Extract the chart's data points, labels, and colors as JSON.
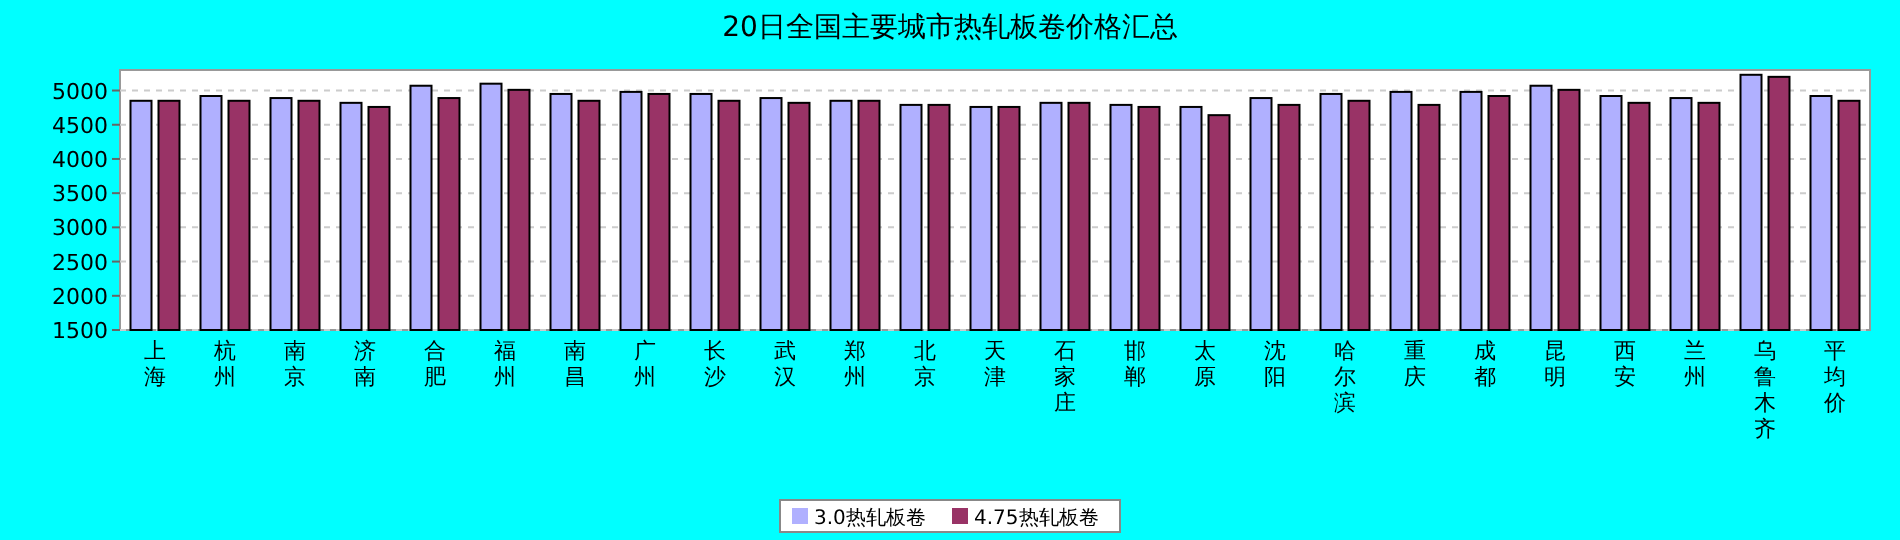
{
  "chart_data": {
    "type": "bar",
    "title": "20日全国主要城市热轧板卷价格汇总",
    "categories": [
      "上海",
      "杭州",
      "南京",
      "济南",
      "合肥",
      "福州",
      "南昌",
      "广州",
      "长沙",
      "武汉",
      "郑州",
      "北京",
      "天津",
      "石家庄",
      "邯郸",
      "太原",
      "沈阳",
      "哈尔滨",
      "重庆",
      "成都",
      "昆明",
      "西安",
      "兰州",
      "乌鲁木齐",
      "平均价"
    ],
    "series": [
      {
        "name": "3.0热轧板卷",
        "color": "#b0b0ff",
        "values": [
          4850,
          4920,
          4890,
          4820,
          5070,
          5100,
          4950,
          4980,
          4950,
          4890,
          4850,
          4790,
          4760,
          4820,
          4790,
          4760,
          4890,
          4950,
          4980,
          4980,
          5070,
          4920,
          4890,
          5230,
          4920
        ]
      },
      {
        "name": "4.75热轧板卷",
        "color": "#993366",
        "values": [
          4850,
          4850,
          4850,
          4760,
          4890,
          5010,
          4850,
          4950,
          4850,
          4820,
          4850,
          4790,
          4760,
          4820,
          4760,
          4640,
          4790,
          4850,
          4790,
          4920,
          5010,
          4820,
          4820,
          5200,
          4850
        ]
      }
    ],
    "ylim": [
      1500,
      5300
    ],
    "yticks": [
      1500,
      2000,
      2500,
      3000,
      3500,
      4000,
      4500,
      5000
    ],
    "grid": "y",
    "legend": "bottom"
  }
}
